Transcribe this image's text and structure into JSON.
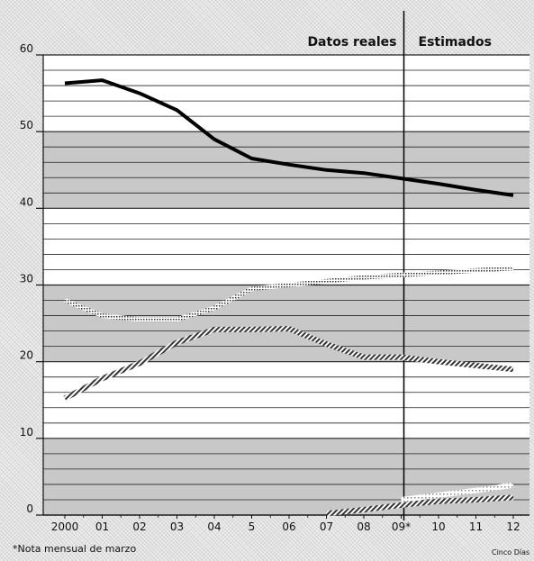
{
  "chart_data": {
    "type": "line",
    "categories": [
      "2000",
      "01",
      "02",
      "03",
      "04",
      "5",
      "06",
      "07",
      "08",
      "09*",
      "10",
      "11",
      "12"
    ],
    "yticks": [
      "0",
      "10",
      "20",
      "30",
      "40",
      "50",
      "60"
    ],
    "ylim": [
      0,
      60
    ],
    "series": [
      {
        "values": [
          56.3,
          56.7,
          55.0,
          52.8,
          49.0,
          46.5,
          45.7,
          45.0,
          44.6,
          43.9,
          43.2,
          42.4,
          41.7
        ],
        "style": "solid-black"
      },
      {
        "values": [
          28.0,
          26.0,
          25.5,
          25.5,
          27.0,
          29.5,
          30.0,
          30.5,
          31.0,
          31.3,
          31.6,
          31.9,
          32.2
        ],
        "style": "dotted-hatch"
      },
      {
        "values": [
          15.2,
          17.8,
          19.8,
          22.5,
          24.2,
          24.2,
          24.3,
          22.3,
          20.6,
          20.6,
          20.0,
          19.5,
          19.0
        ],
        "style": "striped-hatch"
      },
      {
        "values": [
          null,
          null,
          null,
          null,
          null,
          null,
          null,
          0.2,
          0.7,
          1.3,
          1.8,
          2.0,
          2.3
        ],
        "style": "striped-hatch"
      },
      {
        "values": [
          null,
          null,
          null,
          null,
          null,
          null,
          null,
          null,
          null,
          2.0,
          2.6,
          3.2,
          3.9
        ],
        "style": "white-dotted"
      }
    ],
    "divider_after": "09*",
    "region_labels": {
      "left": "Datos reales",
      "right": "Estimados"
    },
    "grid": true
  },
  "footnote": "*Nota mensual de marzo",
  "credit": "Cinco Días",
  "colors": {
    "axis": "#111111",
    "grid": "#222222",
    "band": "#c8c8c8",
    "main_line": "#000000",
    "hatch": "#333333"
  }
}
